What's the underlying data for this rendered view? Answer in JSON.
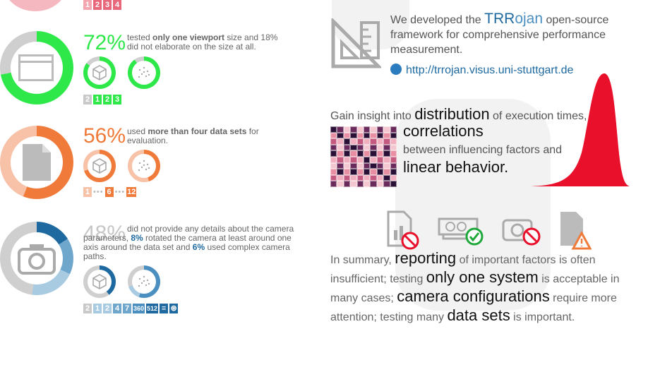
{
  "colors": {
    "green": "#2ee84a",
    "orange": "#f07a3a",
    "blue": "#4a8fc0",
    "grey": "#bbbbbb",
    "pink": "#f2b3bb",
    "red": "#e8102a",
    "teal": "#1e6aa0"
  },
  "left": {
    "top_tiles": [
      "1",
      "2",
      "3",
      "4"
    ],
    "section1": {
      "percent": "72%",
      "percent_value": 72,
      "text_a": "tested ",
      "text_b": "only one viewport",
      "text_c": " size and 18% did not elaborate on the size at all.",
      "tiles": [
        "2",
        "1",
        "2",
        "3"
      ]
    },
    "section2": {
      "percent": "56%",
      "percent_value": 56,
      "text_a": "used ",
      "text_b": "more than four data sets",
      "text_c": " for evaluation.",
      "tiles_a": [
        "1"
      ],
      "tiles_b": [
        "6"
      ],
      "tiles_c": [
        "12"
      ]
    },
    "section3": {
      "percent": "48%",
      "percent_value": 48,
      "text_a": "did not provide any details about the camera parameters, ",
      "text_b": "8%",
      "text_c": " rotated the camera at least around one axis around the data set and ",
      "text_d": "6%",
      "text_e": " used complex camera paths.",
      "tiles": [
        "2",
        "1",
        "2",
        "4",
        "7",
        "360",
        "512",
        "≡",
        "⊛"
      ]
    }
  },
  "right": {
    "intro_a": "We developed the ",
    "intro_brand_a": "TRR",
    "intro_brand_b": "ojan",
    "intro_b": " open-source framework for comprehensive performance measurement.",
    "url": "http://trrojan.visus.uni-stuttgart.de",
    "gain_a": "Gain insight into ",
    "gain_b": "distribution",
    "gain_c": " of execution times, ",
    "gain_d": "correlations",
    "gain_e": " between influencing factors and ",
    "gain_f": "linear behavior.",
    "summary": {
      "p1": "In summary, ",
      "b1": "reporting",
      "p2": " of important factors is often insufficient; testing ",
      "b2": "only one system",
      "p3": " is acceptable in many cases; ",
      "b3": "camera configurations",
      "p4": " require more attention; testing many ",
      "b4": "data sets",
      "p5": " is important."
    }
  }
}
